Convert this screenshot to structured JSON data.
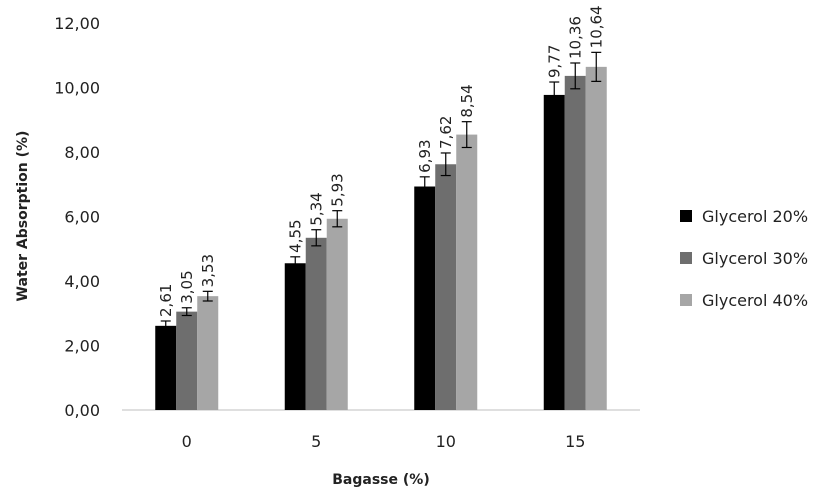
{
  "chart_data": {
    "type": "bar",
    "xlabel": "Bagasse (%)",
    "ylabel": "Water Absorption (%)",
    "categories": [
      "0",
      "5",
      "10",
      "15"
    ],
    "ylim": [
      0,
      12
    ],
    "y_ticks": [
      "0,00",
      "2,00",
      "4,00",
      "6,00",
      "8,00",
      "10,00",
      "12,00"
    ],
    "grid": false,
    "legend_position": "right",
    "series": [
      {
        "name": "Glycerol 20%",
        "color": "#000000",
        "values": [
          2.61,
          4.55,
          6.93,
          9.77
        ],
        "labels": [
          "2,61",
          "4,55",
          "6,93",
          "9,77"
        ],
        "errors": [
          0.15,
          0.2,
          0.3,
          0.4
        ]
      },
      {
        "name": "Glycerol 30%",
        "color": "#6e6e6e",
        "values": [
          3.05,
          5.34,
          7.62,
          10.36
        ],
        "labels": [
          "3,05",
          "5,34",
          "7,62",
          "10,36"
        ],
        "errors": [
          0.12,
          0.25,
          0.35,
          0.4
        ]
      },
      {
        "name": "Glycerol 40%",
        "color": "#a6a6a6",
        "values": [
          3.53,
          5.93,
          8.54,
          10.64
        ],
        "labels": [
          "3,53",
          "5,93",
          "8,54",
          "10,64"
        ],
        "errors": [
          0.15,
          0.25,
          0.4,
          0.45
        ]
      }
    ]
  }
}
